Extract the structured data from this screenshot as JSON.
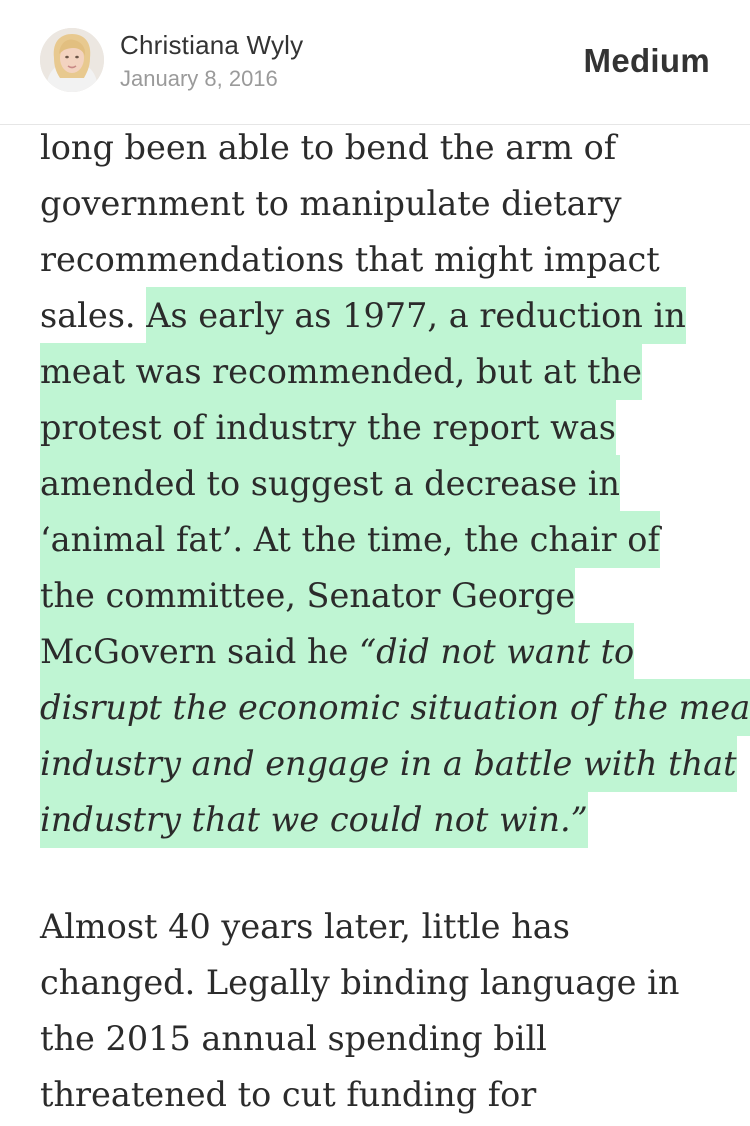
{
  "header": {
    "author_name": "Christiana Wyly",
    "date": "January 8, 2016",
    "brand": "Medium",
    "avatar_icon": "author-avatar-photo"
  },
  "colors": {
    "highlight": "#bff5d3",
    "body_text": "#2b2b2b",
    "meta_text": "#9a9a9a"
  },
  "article": {
    "paragraph1": {
      "line1": "long been able to bend the arm of",
      "line2": "government to manipulate dietary",
      "line3": "recommendations that might impact",
      "line4_plain": "sales. ",
      "line4_highlight": "As early as 1977, a reduction in",
      "line5": "meat was recommended, but at the",
      "line6": "protest of industry the report was",
      "line7": "amended to suggest a decrease in",
      "line8": "‘animal fat’. At the time, the chair of",
      "line9": "the committee, Senator George",
      "line10_plain": "McGovern said he ",
      "line10_quote": "“did not want to",
      "line11": "disrupt the economic situation of the meat",
      "line12": "industry and engage in a battle with that",
      "line13_quote": "industry that we could not win.",
      "line13_close": "”"
    },
    "paragraph2": {
      "line1": "Almost 40 years later, little has",
      "line2": "changed. Legally binding language in",
      "line3": "the 2015 annual spending bill",
      "line4": "threatened to cut funding for"
    }
  }
}
